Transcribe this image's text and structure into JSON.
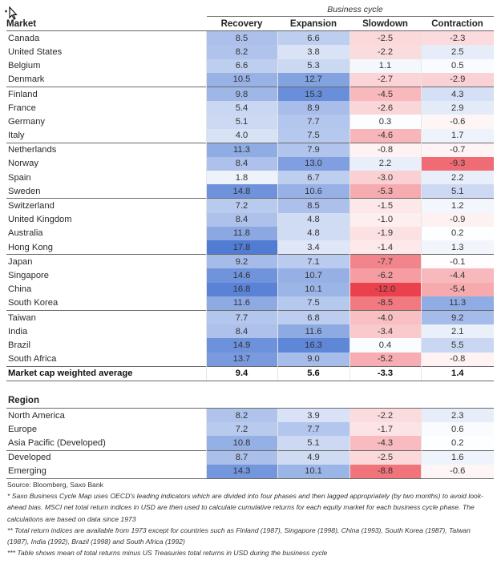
{
  "header": {
    "business_cycle_label": "Business cycle",
    "columns": [
      "Market",
      "Recovery",
      "Expansion",
      "Slowdown",
      "Contraction"
    ]
  },
  "markets": [
    {
      "name": "Canada",
      "values": [
        "8.5",
        "6.6",
        "-2.5",
        "-2.3"
      ]
    },
    {
      "name": "United States",
      "values": [
        "8.2",
        "3.8",
        "-2.2",
        "2.5"
      ]
    },
    {
      "name": "Belgium",
      "values": [
        "6.6",
        "5.3",
        "1.1",
        "0.5"
      ]
    },
    {
      "name": "Denmark",
      "values": [
        "10.5",
        "12.7",
        "-2.7",
        "-2.9"
      ]
    },
    {
      "name": "Finland",
      "values": [
        "9.8",
        "15.3",
        "-4.5",
        "4.3"
      ]
    },
    {
      "name": "France",
      "values": [
        "5.4",
        "8.9",
        "-2.6",
        "2.9"
      ]
    },
    {
      "name": "Germany",
      "values": [
        "5.1",
        "7.7",
        "0.3",
        "-0.6"
      ]
    },
    {
      "name": "Italy",
      "values": [
        "4.0",
        "7.5",
        "-4.6",
        "1.7"
      ]
    },
    {
      "name": "Netherlands",
      "values": [
        "11.3",
        "7.9",
        "-0.8",
        "-0.7"
      ]
    },
    {
      "name": "Norway",
      "values": [
        "8.4",
        "13.0",
        "2.2",
        "-9.3"
      ]
    },
    {
      "name": "Spain",
      "values": [
        "1.8",
        "6.7",
        "-3.0",
        "2.2"
      ]
    },
    {
      "name": "Sweden",
      "values": [
        "14.8",
        "10.6",
        "-5.3",
        "5.1"
      ]
    },
    {
      "name": "Switzerland",
      "values": [
        "7.2",
        "8.5",
        "-1.5",
        "1.2"
      ]
    },
    {
      "name": "United Kingdom",
      "values": [
        "8.4",
        "4.8",
        "-1.0",
        "-0.9"
      ]
    },
    {
      "name": "Australia",
      "values": [
        "11.8",
        "4.8",
        "-1.9",
        "0.2"
      ]
    },
    {
      "name": "Hong Kong",
      "values": [
        "17.8",
        "3.4",
        "-1.4",
        "1.3"
      ]
    },
    {
      "name": "Japan",
      "values": [
        "9.2",
        "7.1",
        "-7.7",
        "-0.1"
      ]
    },
    {
      "name": "Singapore",
      "values": [
        "14.6",
        "10.7",
        "-6.2",
        "-4.4"
      ]
    },
    {
      "name": "China",
      "values": [
        "16.8",
        "10.1",
        "-12.0",
        "-5.4"
      ]
    },
    {
      "name": "South Korea",
      "values": [
        "11.6",
        "7.5",
        "-8.5",
        "11.3"
      ]
    },
    {
      "name": "Taiwan",
      "values": [
        "7.7",
        "6.8",
        "-4.0",
        "9.2"
      ]
    },
    {
      "name": "India",
      "values": [
        "8.4",
        "11.6",
        "-3.4",
        "2.1"
      ]
    },
    {
      "name": "Brazil",
      "values": [
        "14.9",
        "16.3",
        "0.4",
        "5.5"
      ]
    },
    {
      "name": "South Africa",
      "values": [
        "13.7",
        "9.0",
        "-5.2",
        "-0.8"
      ]
    }
  ],
  "average": {
    "name": "Market cap weighted average",
    "values": [
      "9.4",
      "5.6",
      "-3.3",
      "1.4"
    ]
  },
  "region_heading": "Region",
  "regions": [
    {
      "name": "North America",
      "values": [
        "8.2",
        "3.9",
        "-2.2",
        "2.3"
      ]
    },
    {
      "name": "Europe",
      "values": [
        "7.2",
        "7.7",
        "-1.7",
        "0.6"
      ]
    },
    {
      "name": "Asia Pacific (Developed)",
      "values": [
        "10.8",
        "5.1",
        "-4.3",
        "0.2"
      ]
    },
    {
      "name": "Developed",
      "values": [
        "8.7",
        "4.9",
        "-2.5",
        "1.6"
      ]
    },
    {
      "name": "Emerging",
      "values": [
        "14.3",
        "10.1",
        "-8.8",
        "-0.6"
      ]
    }
  ],
  "notes": {
    "source": "Source: Bloomberg, Saxo Bank",
    "note1": "* Saxo Business Cycle Map uses OECD's leading indicators which are divided into four phases and then lagged appropriately (by two months) to avoid look-ahead bias. MSCI net total return indices in USD are then used to calculate cumulative returns for each equity market for each business cycle phase. The calculations are based on data since 1973",
    "note2": "** Total return indices are available from 1973 except for countries such as Finland (1987), Singapore (1998), China (1993), South Korea (1987), Taiwan (1987), India (1992), Brazil (1998) and South Africa (1992)",
    "note3": "*** Table shows mean of total returns minus US Treasuries total returns in USD during the business cycle"
  },
  "colors": {
    "positive_max": "#3f6fd0",
    "negative_max": "#e8202c",
    "neutral": "#ffffff"
  }
}
